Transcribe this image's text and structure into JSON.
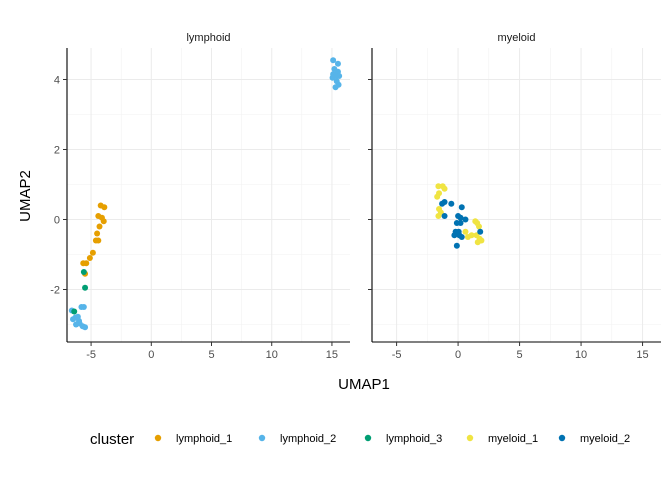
{
  "chart_data": {
    "type": "scatter",
    "xlabel": "UMAP1",
    "ylabel": "UMAP2",
    "xlim": [
      -7,
      16.5
    ],
    "ylim": [
      -3.5,
      4.9
    ],
    "xticks": [
      -5,
      0,
      5,
      10,
      15
    ],
    "yticks": [
      -2,
      0,
      2,
      4
    ],
    "grid": true,
    "legend": {
      "title": "cluster",
      "position": "bottom",
      "entries": [
        "lymphoid_1",
        "lymphoid_2",
        "lymphoid_3",
        "myeloid_1",
        "myeloid_2"
      ]
    },
    "colors": {
      "lymphoid_1": "#E69F00",
      "lymphoid_2": "#56B4E9",
      "lymphoid_3": "#009E73",
      "myeloid_1": "#F0E442",
      "myeloid_2": "#0072B2"
    },
    "facets": [
      {
        "label": "lymphoid",
        "series": [
          {
            "name": "lymphoid_1",
            "points": [
              [
                -4.2,
                0.4
              ],
              [
                -3.9,
                0.35
              ],
              [
                -4.4,
                0.1
              ],
              [
                -4.1,
                0.05
              ],
              [
                -3.95,
                -0.05
              ],
              [
                -4.3,
                -0.2
              ],
              [
                -4.5,
                -0.4
              ],
              [
                -4.6,
                -0.6
              ],
              [
                -4.85,
                -0.95
              ],
              [
                -5.1,
                -1.1
              ],
              [
                -5.4,
                -1.25
              ],
              [
                -5.65,
                -1.25
              ],
              [
                -4.4,
                -0.6
              ],
              [
                -5.5,
                -1.55
              ]
            ]
          },
          {
            "name": "lymphoid_2",
            "points": [
              [
                15.1,
                4.55
              ],
              [
                15.5,
                4.45
              ],
              [
                15.2,
                4.3
              ],
              [
                15.5,
                4.22
              ],
              [
                15.1,
                4.15
              ],
              [
                15.35,
                4.1
              ],
              [
                15.6,
                4.1
              ],
              [
                15.05,
                4.05
              ],
              [
                15.4,
                3.95
              ],
              [
                15.55,
                3.85
              ],
              [
                15.3,
                3.78
              ],
              [
                -5.8,
                -2.5
              ],
              [
                -5.6,
                -2.5
              ],
              [
                -6.1,
                -2.78
              ],
              [
                -6.3,
                -2.8
              ],
              [
                -6.5,
                -2.85
              ],
              [
                -6.0,
                -2.9
              ],
              [
                -5.95,
                -2.97
              ],
              [
                -5.7,
                -3.05
              ],
              [
                -5.5,
                -3.08
              ],
              [
                -6.6,
                -2.6
              ],
              [
                -6.25,
                -3.0
              ]
            ]
          },
          {
            "name": "lymphoid_3",
            "points": [
              [
                -5.6,
                -1.5
              ],
              [
                -5.5,
                -1.95
              ],
              [
                -6.4,
                -2.63
              ]
            ]
          }
        ]
      },
      {
        "label": "myeloid",
        "series": [
          {
            "name": "myeloid_1",
            "points": [
              [
                -1.6,
                0.95
              ],
              [
                -1.25,
                0.95
              ],
              [
                -1.1,
                0.88
              ],
              [
                -1.55,
                0.75
              ],
              [
                -1.7,
                0.65
              ],
              [
                -1.55,
                0.3
              ],
              [
                -1.4,
                0.2
              ],
              [
                -1.6,
                0.1
              ],
              [
                1.4,
                -0.05
              ],
              [
                1.55,
                -0.1
              ],
              [
                1.7,
                -0.2
              ],
              [
                1.1,
                -0.45
              ],
              [
                1.5,
                -0.45
              ],
              [
                1.75,
                -0.55
              ],
              [
                1.9,
                -0.6
              ],
              [
                1.6,
                -0.65
              ],
              [
                0.6,
                -0.35
              ],
              [
                0.8,
                -0.5
              ]
            ]
          },
          {
            "name": "myeloid_2",
            "points": [
              [
                -1.1,
                0.5
              ],
              [
                -1.3,
                0.45
              ],
              [
                -0.55,
                0.45
              ],
              [
                0.3,
                0.35
              ],
              [
                -1.1,
                0.1
              ],
              [
                0.0,
                0.1
              ],
              [
                0.2,
                0.05
              ],
              [
                0.6,
                0.0
              ],
              [
                -0.1,
                -0.1
              ],
              [
                -0.2,
                -0.35
              ],
              [
                0.05,
                -0.35
              ],
              [
                -0.3,
                -0.45
              ],
              [
                0.1,
                -0.45
              ],
              [
                0.3,
                -0.5
              ],
              [
                1.8,
                -0.35
              ],
              [
                0.2,
                -0.1
              ],
              [
                -0.1,
                -0.75
              ]
            ]
          }
        ]
      }
    ]
  }
}
